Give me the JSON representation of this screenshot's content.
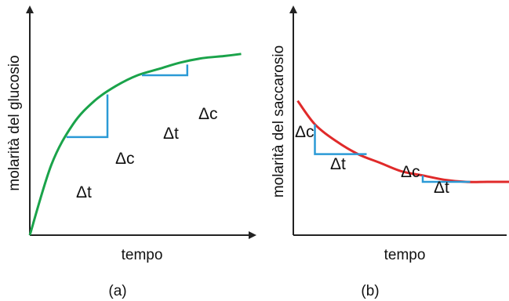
{
  "colors": {
    "glucose": "#1aa34a",
    "sucrose": "#e02a2a",
    "delta": "#2b9ad6",
    "axis": "#222222"
  },
  "chart_data": [
    {
      "type": "line",
      "panel_label": "(a)",
      "xlabel": "tempo",
      "ylabel": "molarità del glucosio",
      "delta_t_label": "Δt",
      "delta_c_label": "Δc",
      "trend": "increasing",
      "xlim": [
        0,
        1
      ],
      "ylim": [
        0,
        1
      ],
      "series": [
        {
          "curve": "rising-saturating",
          "x": [
            0,
            0.1,
            0.2,
            0.3,
            0.4,
            0.5,
            0.6,
            0.7,
            0.8,
            0.9,
            0.98
          ],
          "y": [
            0,
            0.33,
            0.52,
            0.63,
            0.7,
            0.75,
            0.78,
            0.81,
            0.83,
            0.84,
            0.85
          ]
        }
      ],
      "delta_triangles": [
        {
          "t": [
            0.17,
            0.36
          ],
          "c": [
            0.46,
            0.66
          ]
        },
        {
          "t": [
            0.52,
            0.73
          ],
          "c": [
            0.75,
            0.8
          ]
        }
      ]
    },
    {
      "type": "line",
      "panel_label": "(b)",
      "xlabel": "tempo",
      "ylabel": "molarità del saccarosio",
      "delta_t_label": "Δt",
      "delta_c_label": "Δc",
      "trend": "decreasing",
      "xlim": [
        0,
        1
      ],
      "ylim": [
        0,
        1
      ],
      "series": [
        {
          "curve": "falling-saturating",
          "x": [
            0.02,
            0.1,
            0.2,
            0.3,
            0.4,
            0.5,
            0.6,
            0.7,
            0.8,
            0.9,
            1.0
          ],
          "y": [
            0.63,
            0.52,
            0.44,
            0.38,
            0.34,
            0.3,
            0.28,
            0.26,
            0.25,
            0.25,
            0.25
          ]
        }
      ],
      "delta_triangles": [
        {
          "t": [
            0.1,
            0.34
          ],
          "c": [
            0.52,
            0.38
          ]
        },
        {
          "t": [
            0.6,
            0.82
          ],
          "c": [
            0.28,
            0.25
          ]
        }
      ]
    }
  ]
}
